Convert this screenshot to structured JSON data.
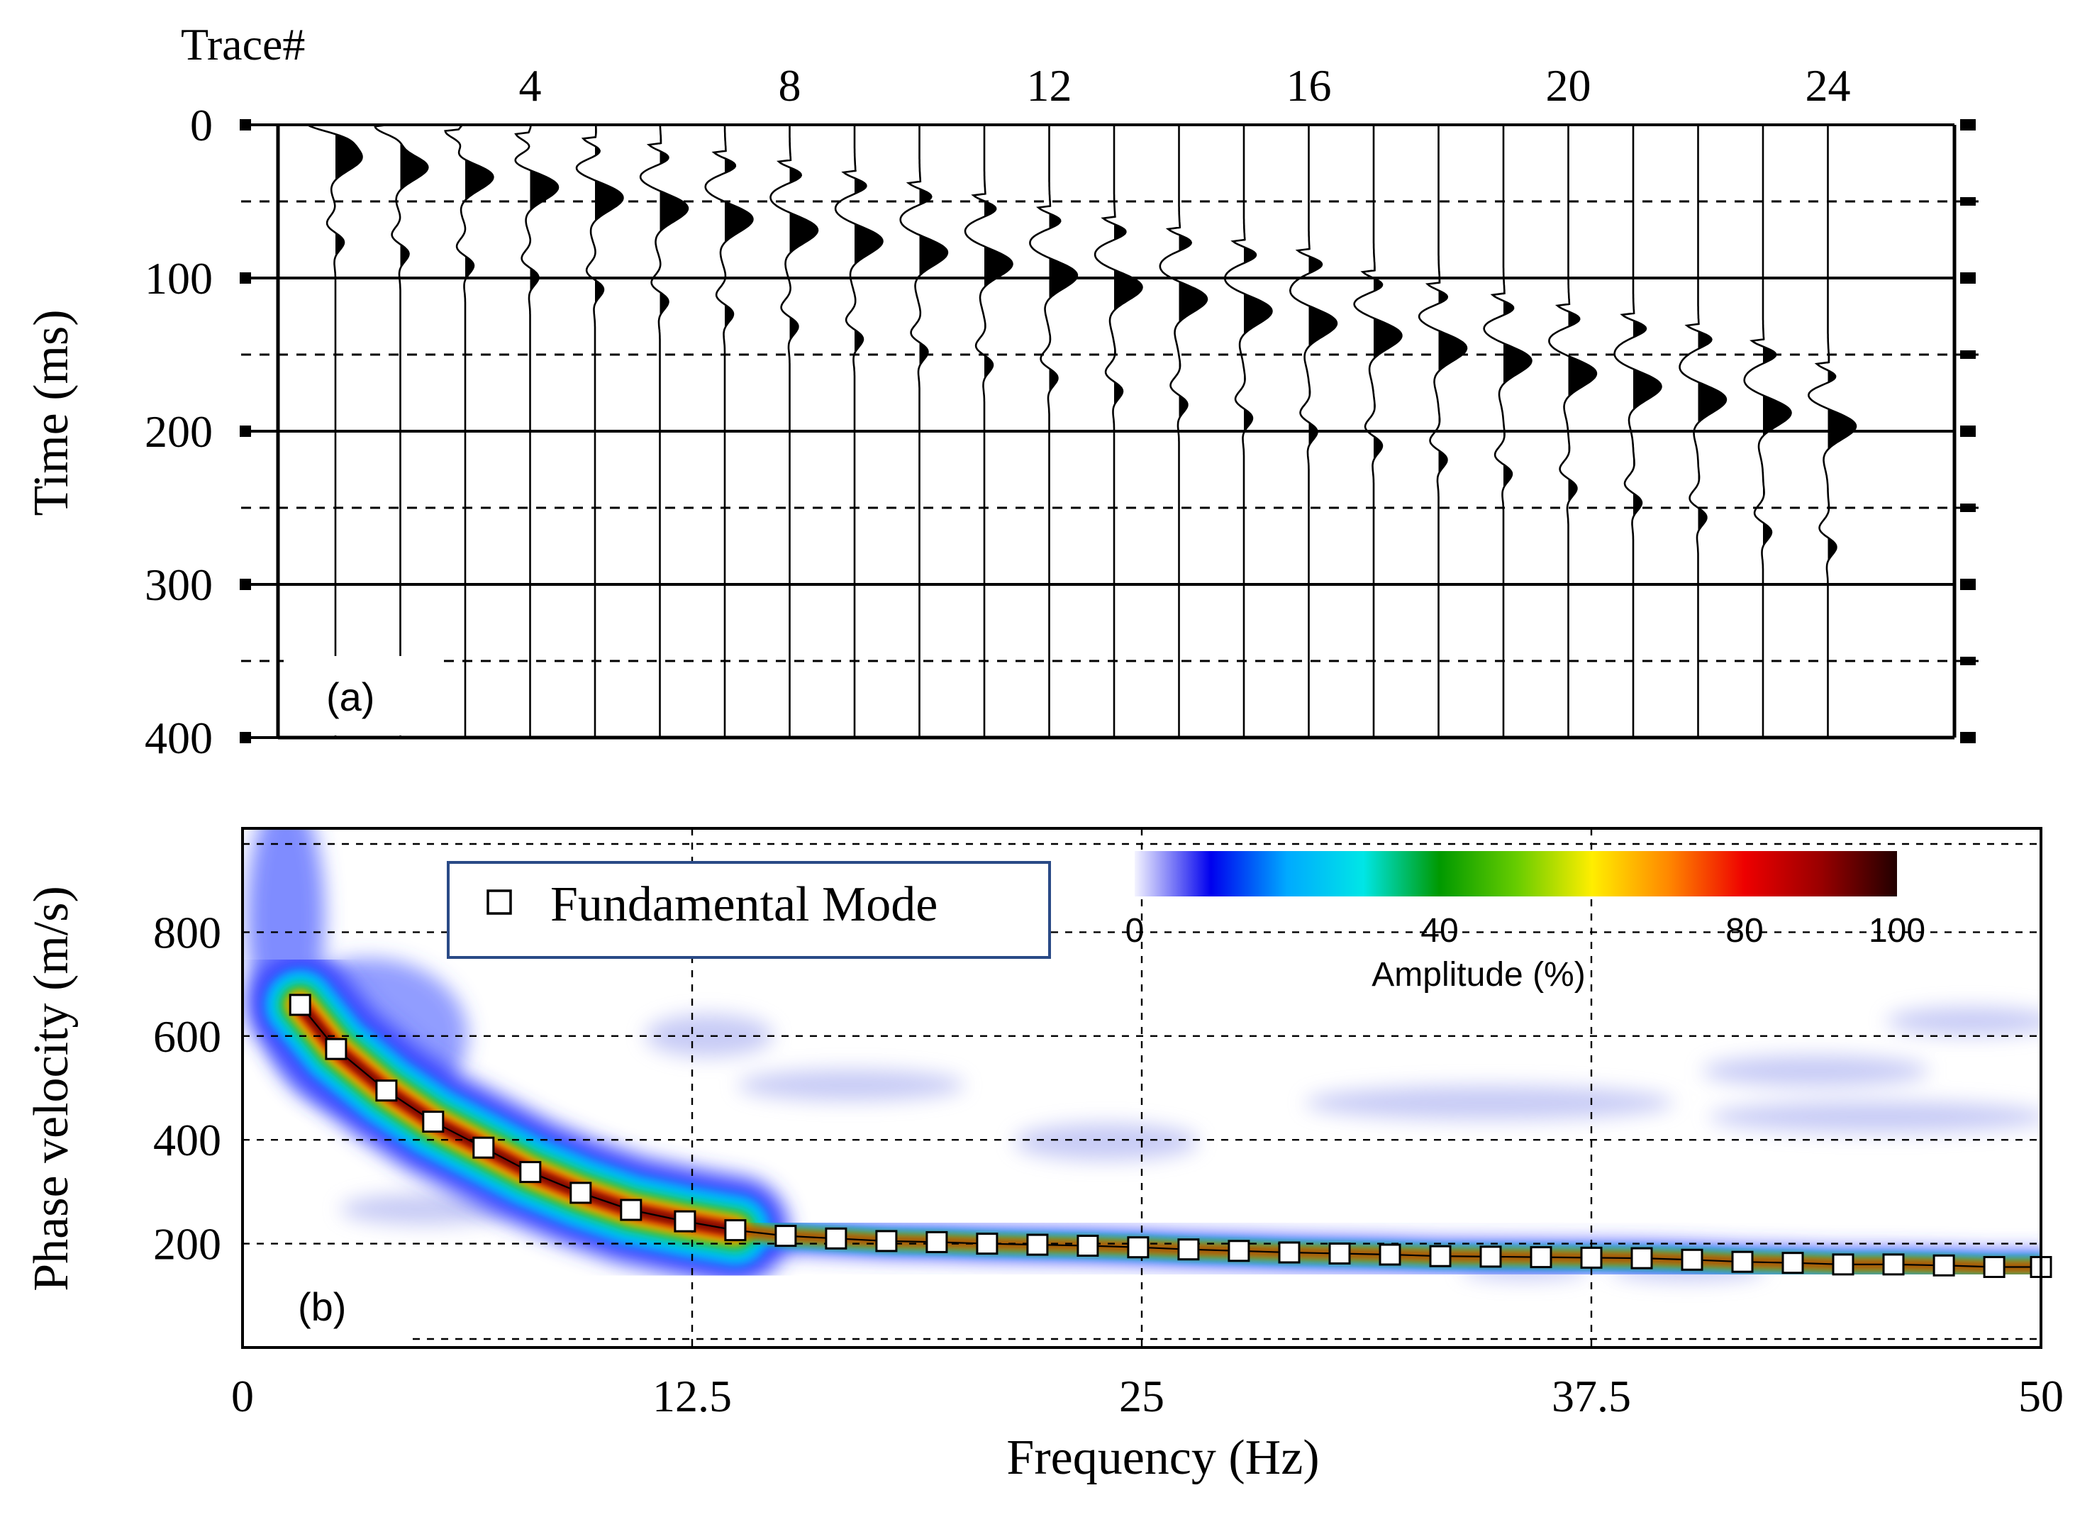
{
  "chart_data": [
    {
      "type": "seismogram",
      "panel_label": "(a)",
      "xlabel": "Trace#",
      "ylabel": "Time (ms)",
      "trace_count": 24,
      "x_ticks": [
        "4",
        "8",
        "12",
        "16",
        "20",
        "24"
      ],
      "x_tick_values": [
        4,
        8,
        12,
        16,
        20,
        24
      ],
      "y_ticks": [
        "0",
        "100",
        "200",
        "300",
        "400"
      ],
      "y_tick_values": [
        0,
        100,
        200,
        300,
        400
      ],
      "ylim": [
        0,
        400
      ],
      "grid": "solid at 100 ms, dashed at 50 ms",
      "first_arrival_ms": [
        3,
        5,
        8,
        10,
        13,
        17,
        22,
        28,
        35,
        42,
        50,
        58,
        65,
        72,
        80,
        86,
        100,
        108,
        115,
        122,
        128,
        135,
        145,
        160
      ]
    },
    {
      "type": "dispersion_image",
      "panel_label": "(b)",
      "xlabel": "Frequency (Hz)",
      "ylabel": "Phase velocity (m/s)",
      "x_ticks": [
        "0",
        "12.5",
        "25",
        "37.5",
        "50"
      ],
      "x_tick_values": [
        0,
        12.5,
        25,
        37.5,
        50
      ],
      "xlim": [
        0,
        50
      ],
      "y_ticks": [
        "200",
        "400",
        "600",
        "800"
      ],
      "y_tick_values": [
        200,
        400,
        600,
        800
      ],
      "ylim": [
        0,
        1000
      ],
      "legend": "Fundamental Mode",
      "colorbar": {
        "label": "Amplitude (%)",
        "ticks": [
          "0",
          "40",
          "80",
          "100"
        ],
        "tick_values": [
          0,
          40,
          80,
          100
        ],
        "colors": [
          "#f4f4ff",
          "#0000ee",
          "#00aaff",
          "#00e6e6",
          "#009900",
          "#66cc00",
          "#ffee00",
          "#ff8800",
          "#ee0000",
          "#990000",
          "#220000"
        ]
      },
      "series": [
        {
          "name": "Fundamental Mode",
          "x": [
            1.6,
            2.6,
            4.0,
            5.3,
            6.7,
            8.0,
            9.4,
            10.8,
            12.3,
            13.7,
            15.1,
            16.5,
            17.9,
            19.3,
            20.7,
            22.1,
            23.5,
            24.9,
            26.3,
            27.7,
            29.1,
            30.5,
            31.9,
            33.3,
            34.7,
            36.1,
            37.5,
            38.9,
            40.3,
            41.7,
            43.1,
            44.5,
            45.9,
            47.3,
            48.7,
            50.0
          ],
          "y": [
            660,
            575,
            495,
            435,
            385,
            338,
            298,
            265,
            243,
            226,
            215,
            210,
            205,
            203,
            200,
            198,
            196,
            193,
            189,
            186,
            183,
            181,
            179,
            176,
            175,
            174,
            173,
            172,
            169,
            165,
            163,
            160,
            160,
            158,
            155,
            155
          ]
        }
      ]
    }
  ]
}
